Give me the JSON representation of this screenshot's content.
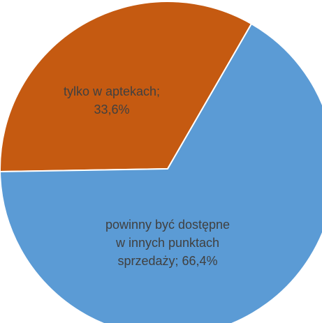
{
  "chart_data": {
    "type": "pie",
    "title": "",
    "slices": [
      {
        "label_lines": [
          "tylko w aptekach;",
          "33,6%"
        ],
        "value": 33.6,
        "color": "#C55A11"
      },
      {
        "label_lines": [
          "powinny być dostępne",
          "w innych punktach",
          "sprzedaży; 66,4%"
        ],
        "value": 66.4,
        "color": "#5B9BD5"
      }
    ]
  }
}
